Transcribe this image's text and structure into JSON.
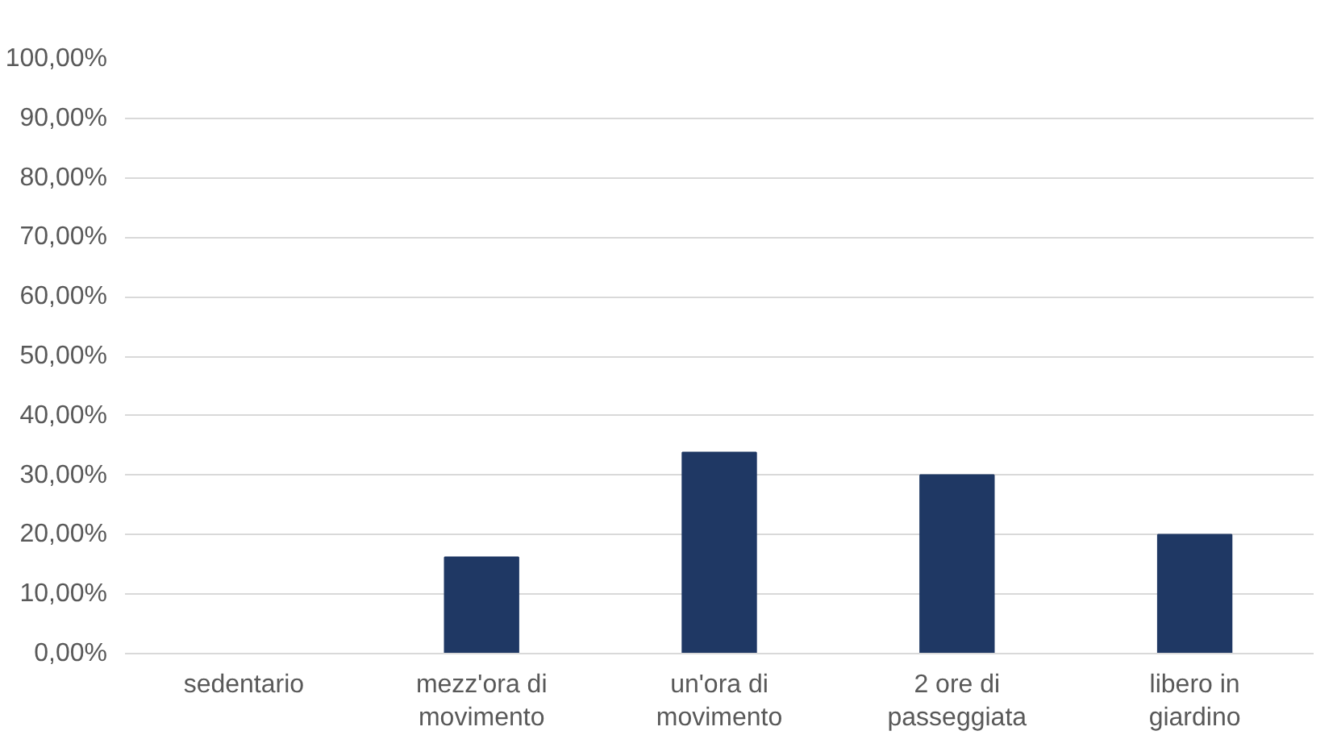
{
  "chart_data": {
    "type": "bar",
    "categories": [
      "sedentario",
      "mezz'ora di movimento",
      "un'ora di movimento",
      "2 ore di passeggiata",
      "libero in giardino"
    ],
    "values": [
      0,
      16.2,
      33.8,
      30,
      20
    ],
    "color": "#1f3864",
    "ylim": [
      0,
      100
    ],
    "yticks": [
      {
        "value": 0,
        "label": "0,00%"
      },
      {
        "value": 10,
        "label": "10,00%"
      },
      {
        "value": 20,
        "label": "20,00%"
      },
      {
        "value": 30,
        "label": "30,00%"
      },
      {
        "value": 40,
        "label": "40,00%"
      },
      {
        "value": 50,
        "label": "50,00%"
      },
      {
        "value": 60,
        "label": "60,00%"
      },
      {
        "value": 70,
        "label": "70,00%"
      },
      {
        "value": 80,
        "label": "80,00%"
      },
      {
        "value": 90,
        "label": "90,00%"
      },
      {
        "value": 100,
        "label": "100,00%"
      }
    ],
    "grid": "y"
  }
}
